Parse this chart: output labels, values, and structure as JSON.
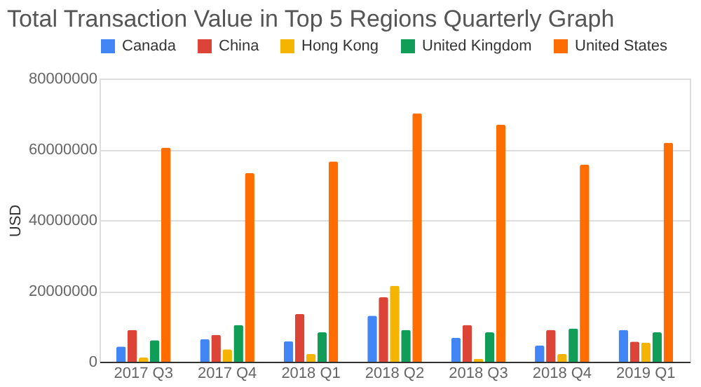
{
  "chart_data": {
    "type": "bar",
    "title": "Total Transaction Value in Top 5 Regions Quarterly Graph",
    "ylabel": "USD",
    "categories": [
      "2017 Q3",
      "2017 Q4",
      "2018 Q1",
      "2018 Q2",
      "2018 Q3",
      "2018 Q4",
      "2019 Q1"
    ],
    "series": [
      {
        "name": "Canada",
        "color": "#4285f4",
        "values": [
          4300000,
          6400000,
          5800000,
          13000000,
          6800000,
          4600000,
          9000000
        ]
      },
      {
        "name": "China",
        "color": "#db4437",
        "values": [
          9000000,
          7600000,
          13500000,
          18200000,
          10400000,
          9000000,
          5700000
        ]
      },
      {
        "name": "Hong Kong",
        "color": "#f4b400",
        "values": [
          1200000,
          3500000,
          2200000,
          21500000,
          800000,
          2200000,
          5400000
        ]
      },
      {
        "name": "United Kingdom",
        "color": "#0f9d58",
        "values": [
          6100000,
          10400000,
          8300000,
          9000000,
          8300000,
          9400000,
          8300000
        ]
      },
      {
        "name": "United States",
        "color": "#ff6d01",
        "values": [
          60500000,
          53300000,
          56600000,
          70200000,
          67000000,
          55700000,
          61900000
        ]
      }
    ],
    "ylim": [
      0,
      80000000
    ],
    "yticks": [
      0,
      20000000,
      40000000,
      60000000,
      80000000
    ],
    "grid": "y",
    "legend": "top"
  }
}
